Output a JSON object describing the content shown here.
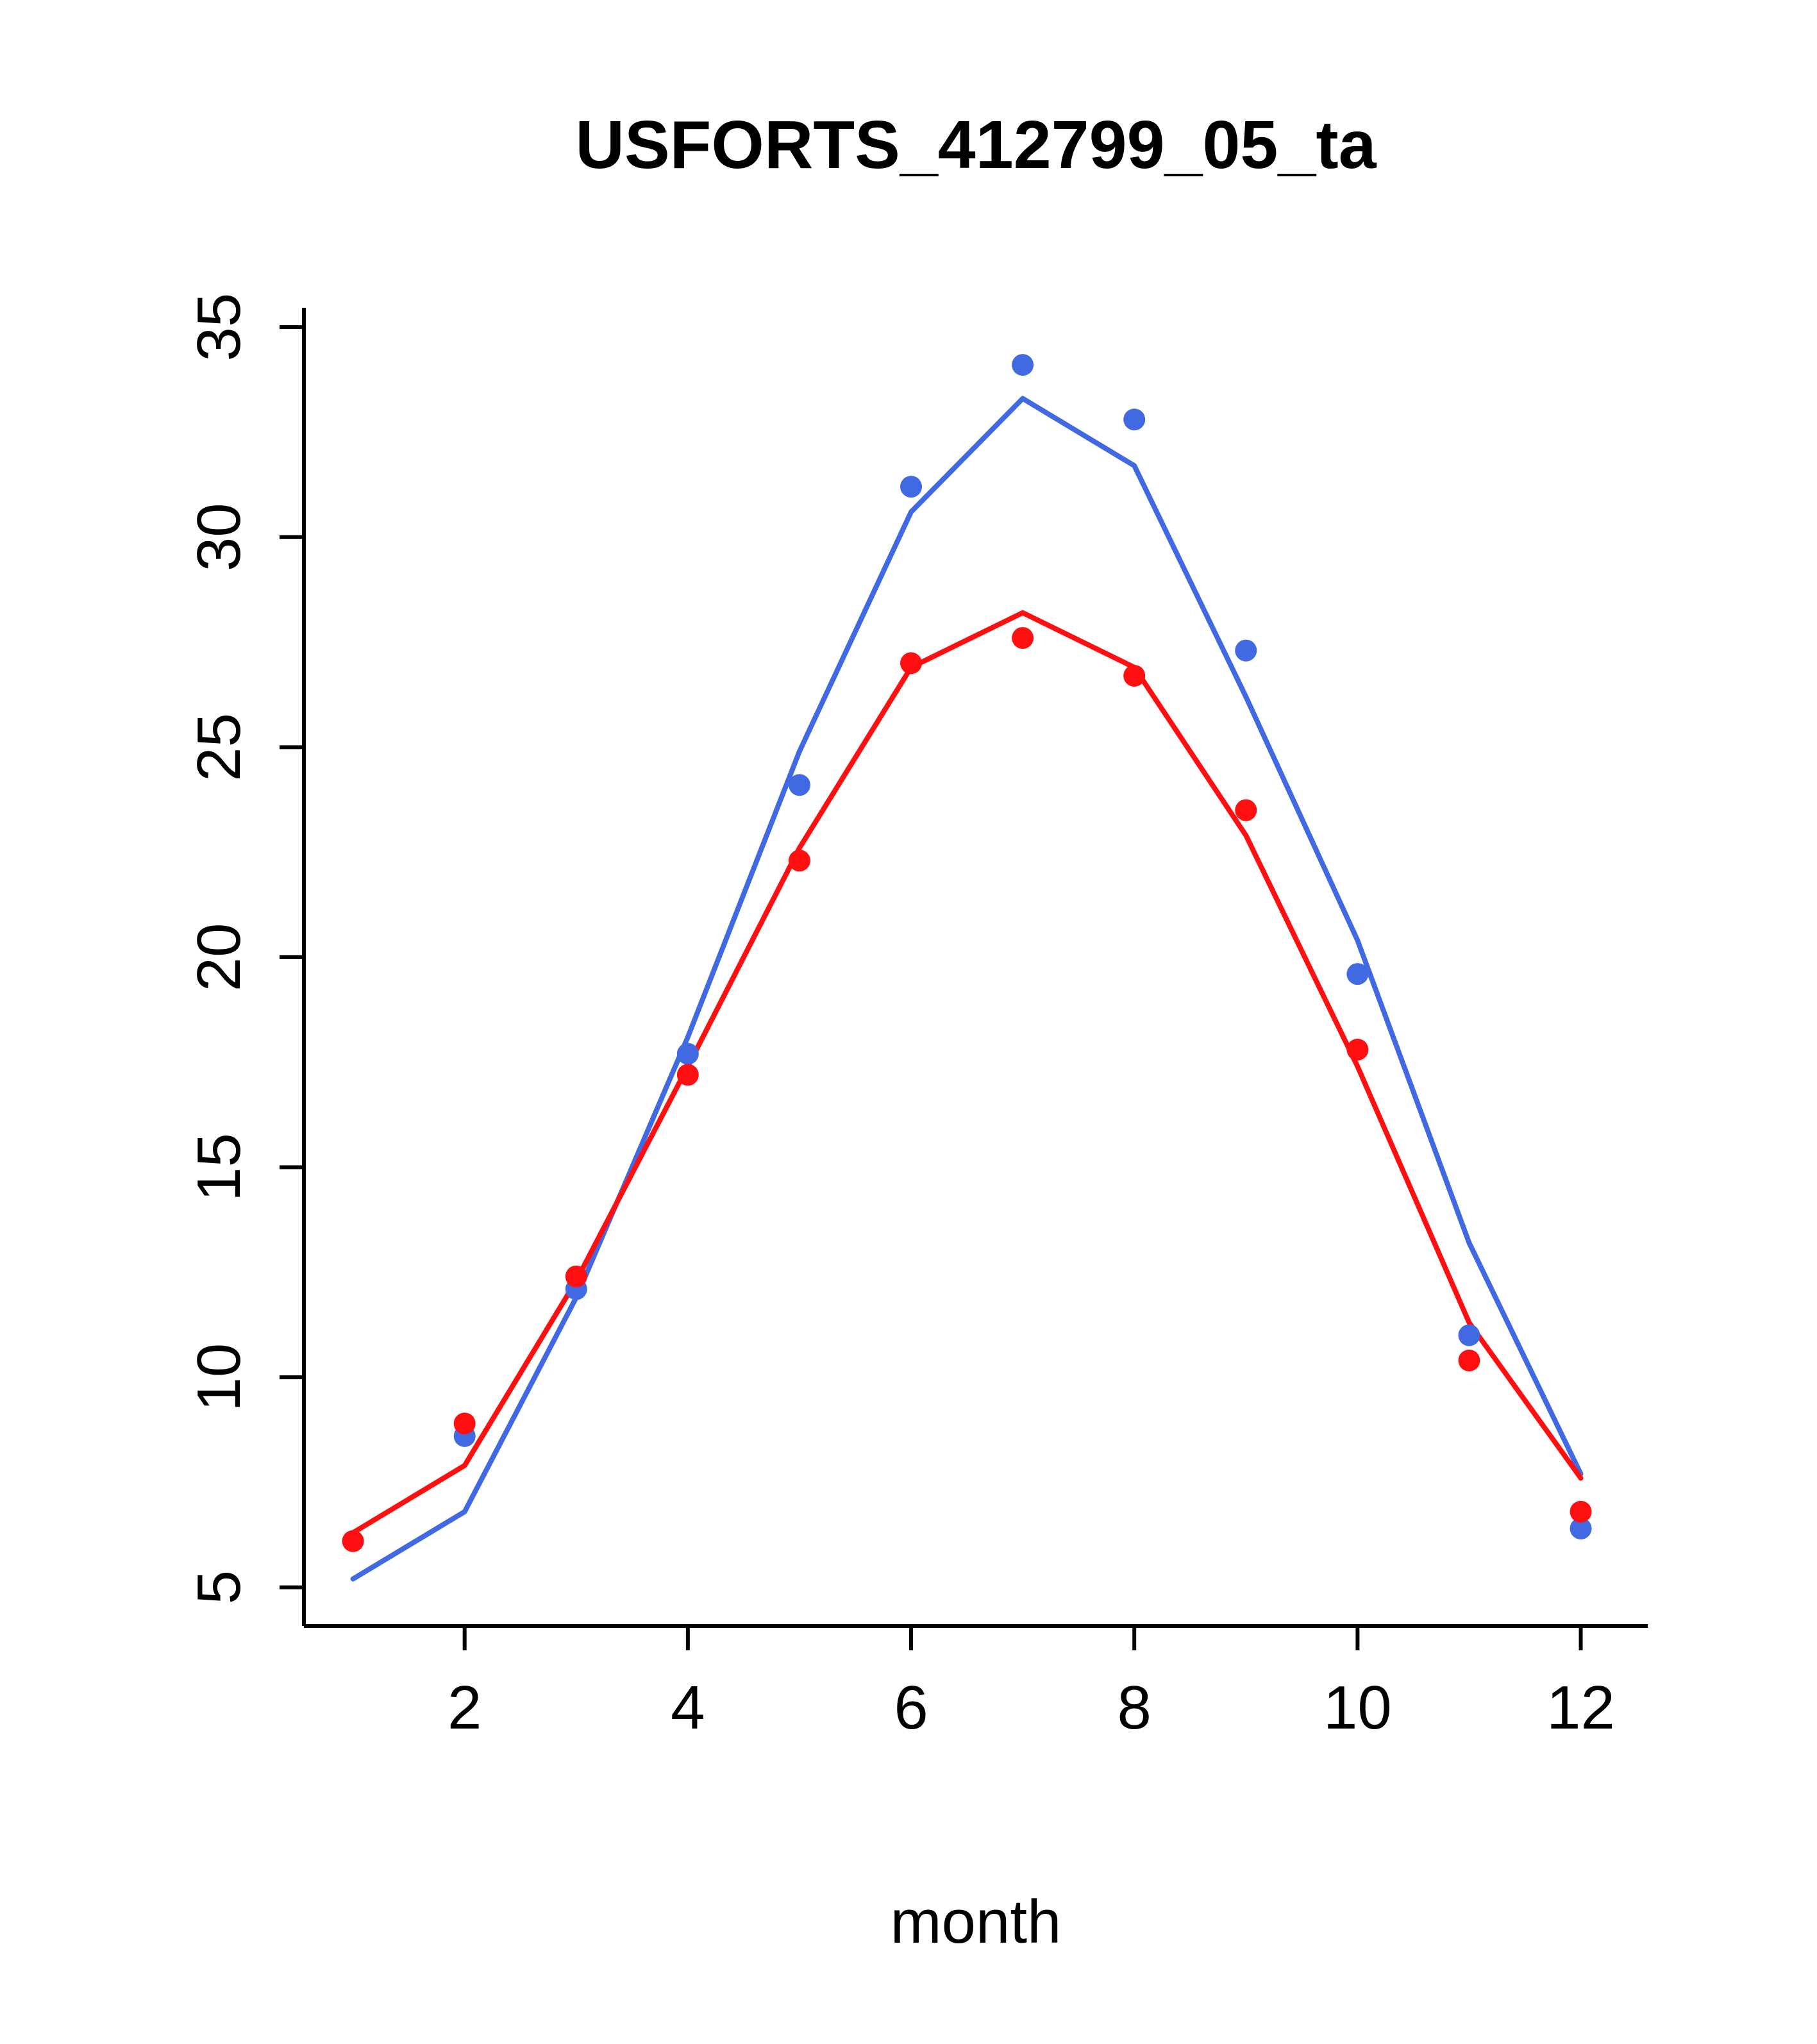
{
  "page": {
    "background": "#ffffff"
  },
  "chart_data": {
    "type": "line",
    "title": "USFORTS_412799_05_ta",
    "xlabel": "month",
    "ylabel": "",
    "x": [
      1,
      2,
      3,
      4,
      5,
      6,
      7,
      8,
      9,
      10,
      11,
      12
    ],
    "xticks": [
      2,
      4,
      6,
      8,
      10,
      12
    ],
    "yticks": [
      5,
      10,
      15,
      20,
      25,
      30,
      35
    ],
    "xlim": [
      0.56,
      12.6
    ],
    "ylim": [
      4.08,
      35.46
    ],
    "grid": false,
    "legend_position": "none",
    "axis_color": "#000000",
    "series": [
      {
        "name": "blue-fitted-line",
        "kind": "line",
        "color": "#4169E1",
        "line_width": 8,
        "values": [
          5.2,
          6.8,
          11.9,
          18.1,
          24.9,
          30.6,
          33.3,
          31.7,
          26.2,
          20.4,
          13.2,
          7.7
        ]
      },
      {
        "name": "red-fitted-line",
        "kind": "line",
        "color": "#FF0F0F",
        "line_width": 8,
        "values": [
          6.3,
          7.9,
          12.3,
          17.4,
          22.6,
          26.9,
          28.2,
          26.9,
          22.9,
          17.4,
          11.3,
          7.6
        ]
      },
      {
        "name": "blue-observed-points",
        "kind": "scatter",
        "color": "#4169E1",
        "point_radius": 17,
        "values": [
          6.1,
          8.6,
          12.1,
          17.7,
          24.1,
          31.2,
          34.1,
          32.8,
          27.3,
          19.6,
          11.0,
          6.4
        ]
      },
      {
        "name": "red-observed-points",
        "kind": "scatter",
        "color": "#FF0F0F",
        "point_radius": 17,
        "values": [
          6.1,
          8.9,
          12.4,
          17.2,
          22.3,
          27.0,
          27.6,
          26.7,
          23.5,
          17.8,
          10.4,
          6.8
        ]
      }
    ]
  }
}
